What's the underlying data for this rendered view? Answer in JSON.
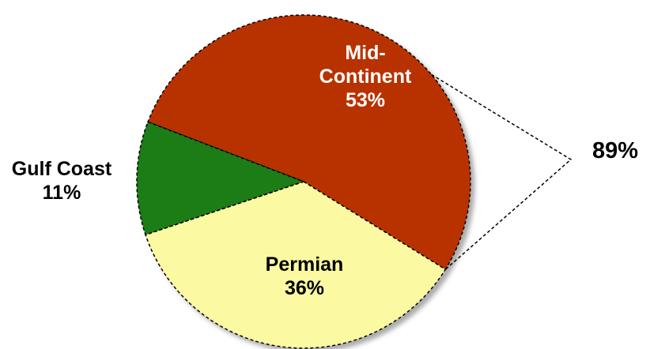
{
  "chart_data": {
    "type": "pie",
    "categories": [
      "Mid-Continent",
      "Permian",
      "Gulf Coast"
    ],
    "values": [
      53,
      36,
      11
    ],
    "value_labels": [
      "53%",
      "36%",
      "11%"
    ],
    "colors": [
      "#b83200",
      "#fbf9a2",
      "#1f7c12"
    ],
    "annotation": "89%"
  }
}
